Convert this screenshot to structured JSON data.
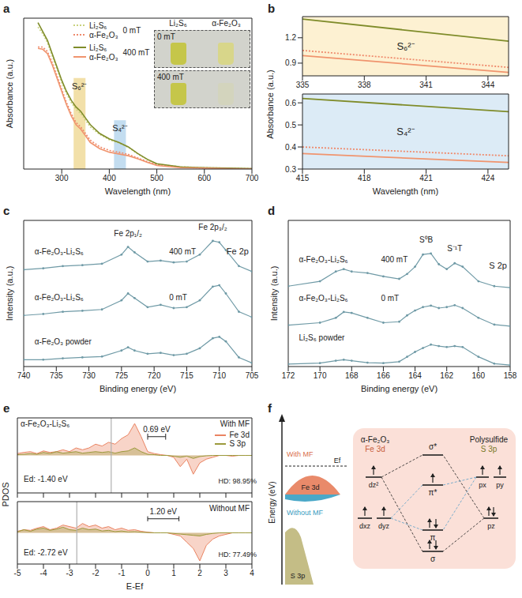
{
  "chart_data": [
    {
      "panel": "a",
      "type": "line",
      "x_label": "Wavelength (nm)",
      "y_label": "Absorbance (a.u.)",
      "xlim": [
        220,
        700
      ],
      "xticks": [
        300,
        400,
        500,
        600,
        700
      ],
      "ylim": [
        0,
        3.4
      ],
      "tick_labels": "x",
      "legend": "upper left",
      "x": [
        250,
        260,
        270,
        280,
        290,
        300,
        310,
        320,
        330,
        340,
        350,
        360,
        380,
        400,
        420,
        440,
        460,
        480,
        500,
        550,
        600,
        650,
        700
      ],
      "series": [
        {
          "name": "Li₂S₆",
          "group": "0 mT",
          "color": "#c9d27e",
          "line_style": "dotted",
          "values": [
            3.2,
            3.05,
            2.85,
            2.55,
            2.25,
            1.95,
            1.7,
            1.5,
            1.35,
            1.25,
            1.1,
            0.95,
            0.78,
            0.66,
            0.59,
            0.49,
            0.34,
            0.21,
            0.11,
            0.05,
            0.03,
            0.02,
            0.01
          ]
        },
        {
          "name": "α-Fe₂O₃",
          "group": "0 mT",
          "color": "#ef8a6c",
          "line_style": "dotted",
          "values": [
            2.75,
            2.75,
            2.65,
            2.4,
            2.1,
            1.8,
            1.5,
            1.25,
            1.05,
            0.95,
            0.8,
            0.65,
            0.5,
            0.42,
            0.38,
            0.33,
            0.25,
            0.17,
            0.1,
            0.04,
            0.02,
            0.01,
            0.01
          ]
        },
        {
          "name": "Li₂S₆",
          "group": "400 mT",
          "color": "#7f8c2a",
          "line_style": "solid",
          "values": [
            3.3,
            3.1,
            2.9,
            2.6,
            2.3,
            2.0,
            1.75,
            1.55,
            1.4,
            1.3,
            1.15,
            1.0,
            0.8,
            0.68,
            0.6,
            0.5,
            0.35,
            0.22,
            0.12,
            0.05,
            0.03,
            0.02,
            0.01
          ]
        },
        {
          "name": "α-Fe₂O₃",
          "group": "400 mT",
          "color": "#f0946e",
          "line_style": "solid",
          "values": [
            2.72,
            2.7,
            2.6,
            2.35,
            2.05,
            1.75,
            1.45,
            1.2,
            1.0,
            0.9,
            0.75,
            0.6,
            0.46,
            0.38,
            0.34,
            0.3,
            0.23,
            0.15,
            0.08,
            0.03,
            0.02,
            0.01,
            0.0
          ]
        }
      ],
      "bands": [
        {
          "label": "S₆²⁻",
          "x": [
            325,
            350
          ],
          "y": [
            0,
            2.05
          ],
          "color": "#f1dda0"
        },
        {
          "label": "S₄²⁻",
          "x": [
            410,
            435
          ],
          "y": [
            0,
            1.1
          ],
          "color": "#bcd9ee"
        }
      ],
      "inset": {
        "columns": [
          "Li₂S₆",
          "α-Fe₂O₃"
        ],
        "rows": [
          "0 mT",
          "400 mT"
        ]
      }
    },
    {
      "panel": "b",
      "type": "line",
      "x_label": "Wavelength (nm)",
      "y_label": "Absorbance (a.u.)",
      "plots": [
        {
          "xlim": [
            335,
            345
          ],
          "xticks": [
            335,
            338,
            341,
            344
          ],
          "ylim": [
            0.75,
            1.45
          ],
          "yticks": [
            0.9,
            1.2
          ],
          "bands": [
            {
              "label": "S₆²⁻",
              "x": [
                335,
                345
              ],
              "color": "#fdf1d2"
            }
          ],
          "x": [
            335,
            345
          ],
          "series": [
            {
              "color": "#7f8c2a",
              "line_style": "solid",
              "values": [
                1.42,
                1.16
              ]
            },
            {
              "color": "#ef8a6c",
              "line_style": "dotted",
              "values": [
                1.05,
                0.85
              ]
            },
            {
              "color": "#f0946e",
              "line_style": "solid",
              "values": [
                0.99,
                0.79
              ]
            }
          ]
        },
        {
          "xlim": [
            415,
            425
          ],
          "xticks": [
            415,
            418,
            421,
            424
          ],
          "ylim": [
            0.3,
            0.64
          ],
          "yticks": [
            0.3,
            0.4,
            0.5,
            0.6
          ],
          "bands": [
            {
              "label": "S₄²⁻",
              "x": [
                415,
                425
              ],
              "color": "#dcebf6"
            }
          ],
          "x": [
            415,
            425
          ],
          "series": [
            {
              "color": "#7f8c2a",
              "line_style": "solid",
              "values": [
                0.62,
                0.56
              ]
            },
            {
              "color": "#ef8a6c",
              "line_style": "dotted",
              "values": [
                0.4,
                0.36
              ]
            },
            {
              "color": "#f0946e",
              "line_style": "solid",
              "values": [
                0.37,
                0.33
              ]
            }
          ]
        }
      ]
    },
    {
      "panel": "c",
      "type": "line",
      "title": "Fe 2p",
      "x_label": "Binding energy (eV)",
      "y_label": "Intensity (a.u.)",
      "xlim": [
        740,
        705
      ],
      "xticks": [
        705,
        710,
        715,
        720,
        725,
        730,
        735,
        740
      ],
      "ylim": [
        0,
        3.2
      ],
      "tick_labels": "x",
      "x": [
        740,
        737,
        734,
        731,
        728,
        725,
        724,
        723,
        721,
        719,
        717,
        715,
        713,
        711,
        710,
        709,
        707,
        705
      ],
      "series": [
        {
          "name": "α-Fe₂O₃-Li₂S₆",
          "condition": "400 mT",
          "color": "#6f9aa6",
          "marker": "circle",
          "values": [
            2.12,
            2.15,
            2.2,
            2.22,
            2.25,
            2.45,
            2.62,
            2.5,
            2.3,
            2.32,
            2.28,
            2.3,
            2.45,
            2.75,
            2.72,
            2.55,
            2.2,
            2.08
          ]
        },
        {
          "name": "α-Fe₂O₃-Li₂S₆",
          "condition": "0 mT",
          "color": "#6f9aa6",
          "marker": "circle",
          "values": [
            1.12,
            1.15,
            1.2,
            1.22,
            1.25,
            1.45,
            1.6,
            1.5,
            1.3,
            1.35,
            1.28,
            1.3,
            1.45,
            1.75,
            1.78,
            1.6,
            1.2,
            1.08
          ]
        },
        {
          "name": "α-Fe₂O₃ powder",
          "color": "#6f9aa6",
          "marker": "circle",
          "values": [
            0.15,
            0.15,
            0.18,
            0.2,
            0.22,
            0.35,
            0.42,
            0.35,
            0.28,
            0.3,
            0.25,
            0.28,
            0.4,
            0.62,
            0.65,
            0.55,
            0.2,
            0.08
          ]
        }
      ],
      "peak_labels": [
        {
          "text": "Fe 2p₁/₂",
          "x": 724
        },
        {
          "text": "Fe 2p₃/₂",
          "x": 711
        }
      ]
    },
    {
      "panel": "d",
      "type": "line",
      "title": "S 2p",
      "x_label": "Binding energy (eV)",
      "y_label": "Intensity (a.u.)",
      "xlim": [
        172,
        158
      ],
      "xticks": [
        158,
        160,
        162,
        164,
        166,
        168,
        170,
        172
      ],
      "ylim": [
        0,
        3.0
      ],
      "tick_labels": "x",
      "x": [
        172,
        170,
        169,
        168.5,
        168,
        167,
        166,
        165,
        164.5,
        164,
        163.5,
        163,
        162.5,
        162,
        161.5,
        161,
        160,
        159,
        158
      ],
      "series": [
        {
          "name": "α-Fe₂O₃-Li₂S₆",
          "condition": "400 mT",
          "color": "#6f9aa6",
          "marker": "circle",
          "values": [
            1.65,
            1.75,
            1.95,
            2.0,
            1.95,
            1.92,
            1.85,
            1.8,
            1.9,
            2.05,
            2.3,
            2.32,
            2.1,
            2.0,
            2.12,
            2.05,
            1.75,
            1.65,
            1.62
          ]
        },
        {
          "name": "α-Fe₂O₃-Li₂S₆",
          "condition": "0 mT",
          "color": "#6f9aa6",
          "marker": "circle",
          "values": [
            0.85,
            0.9,
            1.0,
            1.12,
            1.1,
            1.0,
            0.9,
            0.92,
            1.05,
            1.15,
            1.22,
            1.25,
            1.2,
            1.22,
            1.26,
            1.2,
            1.0,
            0.86,
            0.83
          ]
        },
        {
          "name": "Li₂S₆ powder",
          "color": "#6f9aa6",
          "marker": "circle",
          "values": [
            0.05,
            0.07,
            0.12,
            0.14,
            0.12,
            0.08,
            0.07,
            0.1,
            0.2,
            0.3,
            0.38,
            0.45,
            0.42,
            0.4,
            0.42,
            0.4,
            0.2,
            0.06,
            0.03
          ]
        }
      ],
      "peak_labels": [
        {
          "text": "S⁰B",
          "x": 163.3
        },
        {
          "text": "S⁻¹T",
          "x": 161.5
        }
      ]
    },
    {
      "panel": "e",
      "type": "area",
      "title": "α-Fe₂O₃-Li₂S₆",
      "x_label": "E-Ef",
      "y_label": "PDOS",
      "xlim": [
        -5,
        4
      ],
      "xticks": [
        -5,
        -4,
        -3,
        -2,
        -1,
        0,
        1,
        2,
        3,
        4
      ],
      "ylim": [
        -1,
        1
      ],
      "legend": "upper right",
      "x": [
        -5,
        -4.75,
        -4.5,
        -4.25,
        -4,
        -3.75,
        -3.5,
        -3.25,
        -3,
        -2.75,
        -2.5,
        -2.25,
        -2,
        -1.75,
        -1.5,
        -1.25,
        -1,
        -0.75,
        -0.5,
        -0.25,
        0,
        0.25,
        0.5,
        0.75,
        1,
        1.25,
        1.5,
        1.75,
        2,
        2.25,
        2.5,
        2.75,
        3,
        3.25,
        3.5,
        3.75,
        4
      ],
      "series": [
        {
          "name": "Fe 3d",
          "color": "#ea8462"
        },
        {
          "name": "S 3p",
          "color": "#9c9a3c"
        }
      ],
      "plots": [
        {
          "condition": "With MF",
          "tick_labels": false,
          "values": [
            [
              0.05,
              0.08,
              0.1,
              0.05,
              0.12,
              0.08,
              0.1,
              0.15,
              0.1,
              0.2,
              0.15,
              0.2,
              0.3,
              0.25,
              0.35,
              0.3,
              0.45,
              0.55,
              0.85,
              0.5,
              0.1,
              0.05,
              0.02,
              0.0,
              -0.05,
              -0.3,
              -0.1,
              -0.5,
              -0.2,
              -0.1,
              -0.05,
              0.0,
              0.0,
              -0.02,
              0.0,
              0.0,
              0.0
            ],
            [
              0.02,
              0.03,
              0.05,
              0.03,
              0.08,
              0.05,
              0.1,
              0.06,
              0.08,
              0.1,
              0.06,
              0.08,
              0.1,
              0.08,
              0.1,
              0.06,
              0.1,
              0.12,
              0.2,
              0.1,
              0.03,
              0.02,
              0.0,
              0.0,
              -0.02,
              -0.05,
              -0.02,
              -0.08,
              -0.03,
              -0.01,
              0,
              0,
              0,
              0,
              0,
              0,
              0
            ]
          ],
          "d_band_center": {
            "value": -1.4,
            "label": "Ed: -1.40 eV"
          },
          "gap": {
            "from": 0,
            "to": 0.69,
            "label": "0.69 eV"
          },
          "annotations": [
            "HD: 98.95%"
          ]
        },
        {
          "condition": "Without MF",
          "tick_labels": "x",
          "values": [
            [
              0.05,
              0.1,
              0.08,
              0.15,
              0.2,
              0.1,
              0.15,
              0.25,
              0.2,
              0.15,
              0.3,
              0.2,
              0.25,
              0.15,
              0.2,
              0.1,
              0.15,
              0.08,
              0.1,
              0.05,
              0.02,
              0,
              0,
              0,
              -0.05,
              -0.1,
              -0.3,
              -0.5,
              -0.9,
              -0.4,
              -0.2,
              -0.1,
              -0.05,
              0,
              0,
              0,
              0
            ],
            [
              0.03,
              0.1,
              0.05,
              0.12,
              0.15,
              0.08,
              0.12,
              0.18,
              0.1,
              0.08,
              0.15,
              0.1,
              0.12,
              0.06,
              0.08,
              0.04,
              0.06,
              0.03,
              0.04,
              0.02,
              0.01,
              0,
              0,
              0,
              -0.02,
              -0.04,
              -0.06,
              -0.08,
              -0.1,
              -0.05,
              -0.02,
              0,
              0,
              0,
              0,
              0,
              0
            ]
          ],
          "d_band_center": {
            "value": -2.72,
            "label": "Ed: -2.72 eV"
          },
          "gap": {
            "from": 0,
            "to": 1.2,
            "label": "1.20 eV"
          },
          "annotations": [
            "HD: 77.49%"
          ]
        }
      ]
    }
  ],
  "diagram": {
    "panel": "f",
    "y_label": "Energy (eV)",
    "fermi_label": "Ef",
    "with": "With MF",
    "without": "Without MF",
    "band_upper": "Fe 3d",
    "band_lower": "S 3p",
    "mo": {
      "left_title": "α-Fe₂O₃",
      "left_sub": "Fe 3d",
      "right_title": "Polysulfide",
      "right_sub": "S 3p",
      "left_levels": [
        "dz²",
        "dxz",
        "dyz"
      ],
      "bonding": [
        "σ*",
        "π*",
        "π",
        "σ"
      ],
      "right_levels": [
        "px",
        "py",
        "pz"
      ]
    }
  }
}
